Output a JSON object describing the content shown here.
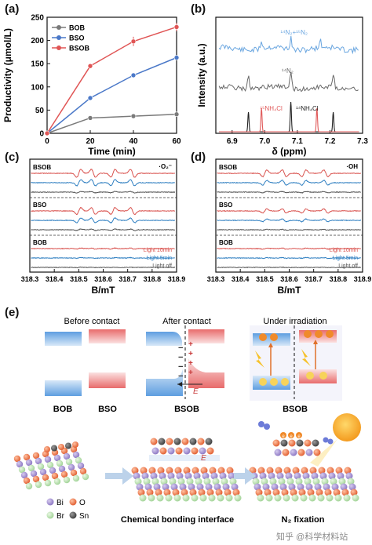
{
  "chart_data": [
    {
      "panel": "(a)",
      "type": "line",
      "ylabel": "Productivity (μmol/L)",
      "xlabel": "Time (min)",
      "xlim": [
        0,
        60
      ],
      "ylim": [
        0,
        250
      ],
      "xticks": [
        0,
        20,
        40,
        60
      ],
      "yticks": [
        0,
        50,
        100,
        150,
        200,
        250
      ],
      "x": [
        0,
        20,
        40,
        60
      ],
      "series": [
        {
          "name": "BOB",
          "color": "#7a7a7a",
          "values": [
            0,
            33,
            37,
            41
          ]
        },
        {
          "name": "BSO",
          "color": "#4a78c8",
          "values": [
            0,
            76,
            125,
            163
          ]
        },
        {
          "name": "BSOB",
          "color": "#e05555",
          "values": [
            0,
            145,
            198,
            229
          ],
          "errors": [
            0,
            5,
            10,
            9
          ]
        }
      ],
      "legend": "top-left"
    },
    {
      "panel": "(b)",
      "type": "line",
      "ylabel": "Intensity (a.u.)",
      "xlabel": "δ (ppm)",
      "xlim": [
        6.85,
        7.3
      ],
      "xticks": [
        6.9,
        7.0,
        7.1,
        7.2,
        7.3
      ],
      "annotations": [
        "14N2+15N2",
        "14N2",
        "15NH4Cl",
        "14NH4Cl"
      ],
      "series_colors": {
        "mix": "#6aa6e0",
        "n14": "#6a6a6a",
        "nh4cl15": "#e05a5a",
        "nh4cl14": "#222222"
      }
    },
    {
      "panel": "(c)",
      "type": "line",
      "xlabel": "B/mT",
      "xlim": [
        318.3,
        318.9
      ],
      "xticks": [
        "318.3",
        "318.4",
        "318.5",
        "318.6",
        "318.7",
        "318.8",
        "318.9"
      ],
      "species": "·O2−",
      "groups": [
        "BSOB",
        "BSO",
        "BOB"
      ],
      "legend": [
        "Light 10min",
        "Light 5min",
        "Light off"
      ]
    },
    {
      "panel": "(d)",
      "type": "line",
      "xlabel": "B/mT",
      "xlim": [
        318.3,
        318.9
      ],
      "xticks": [
        "318.3",
        "318.4",
        "318.5",
        "318.6",
        "318.7",
        "318.8",
        "318.9"
      ],
      "species": "·OH",
      "groups": [
        "BSOB",
        "BSO",
        "BOB"
      ],
      "legend": [
        "Light 10min",
        "Light 5min",
        "Light off"
      ]
    }
  ],
  "labels": {
    "a": "(a)",
    "b": "(b)",
    "c": "(c)",
    "d": "(d)",
    "e": "(e)",
    "n2mix_main": "¹⁴N₂+¹⁵N₂",
    "n14_main": "¹⁴N₂",
    "nh4cl15_main": "¹⁵NH₄Cl",
    "nh4cl14_main": "¹⁴NH₄Cl",
    "o2_radical": "·O₂⁻",
    "oh_radical": "·OH"
  },
  "schematic": {
    "before_contact": "Before contact",
    "after_contact": "After contact",
    "under_irradiation": "Under irradiation",
    "bob": "BOB",
    "bso": "BSO",
    "bsob": "BSOB",
    "bsob2": "BSOB",
    "e_field": "E",
    "e_field2": "E",
    "bonding_interface": "Chemical bonding interface",
    "n2_fixation": "N₂ fixation",
    "elem_bi": "Bi",
    "elem_o": "O",
    "elem_br": "Br",
    "elem_sn": "Sn",
    "electron": "e",
    "hole": "h"
  },
  "colors": {
    "bi": "#9b86c9",
    "o": "#e8734a",
    "br": "#b9dfb0",
    "sn": "#555555",
    "blue_band": "#7fb2e5",
    "red_band": "#f2a3a3"
  },
  "watermark": "知乎 @科学材料站"
}
